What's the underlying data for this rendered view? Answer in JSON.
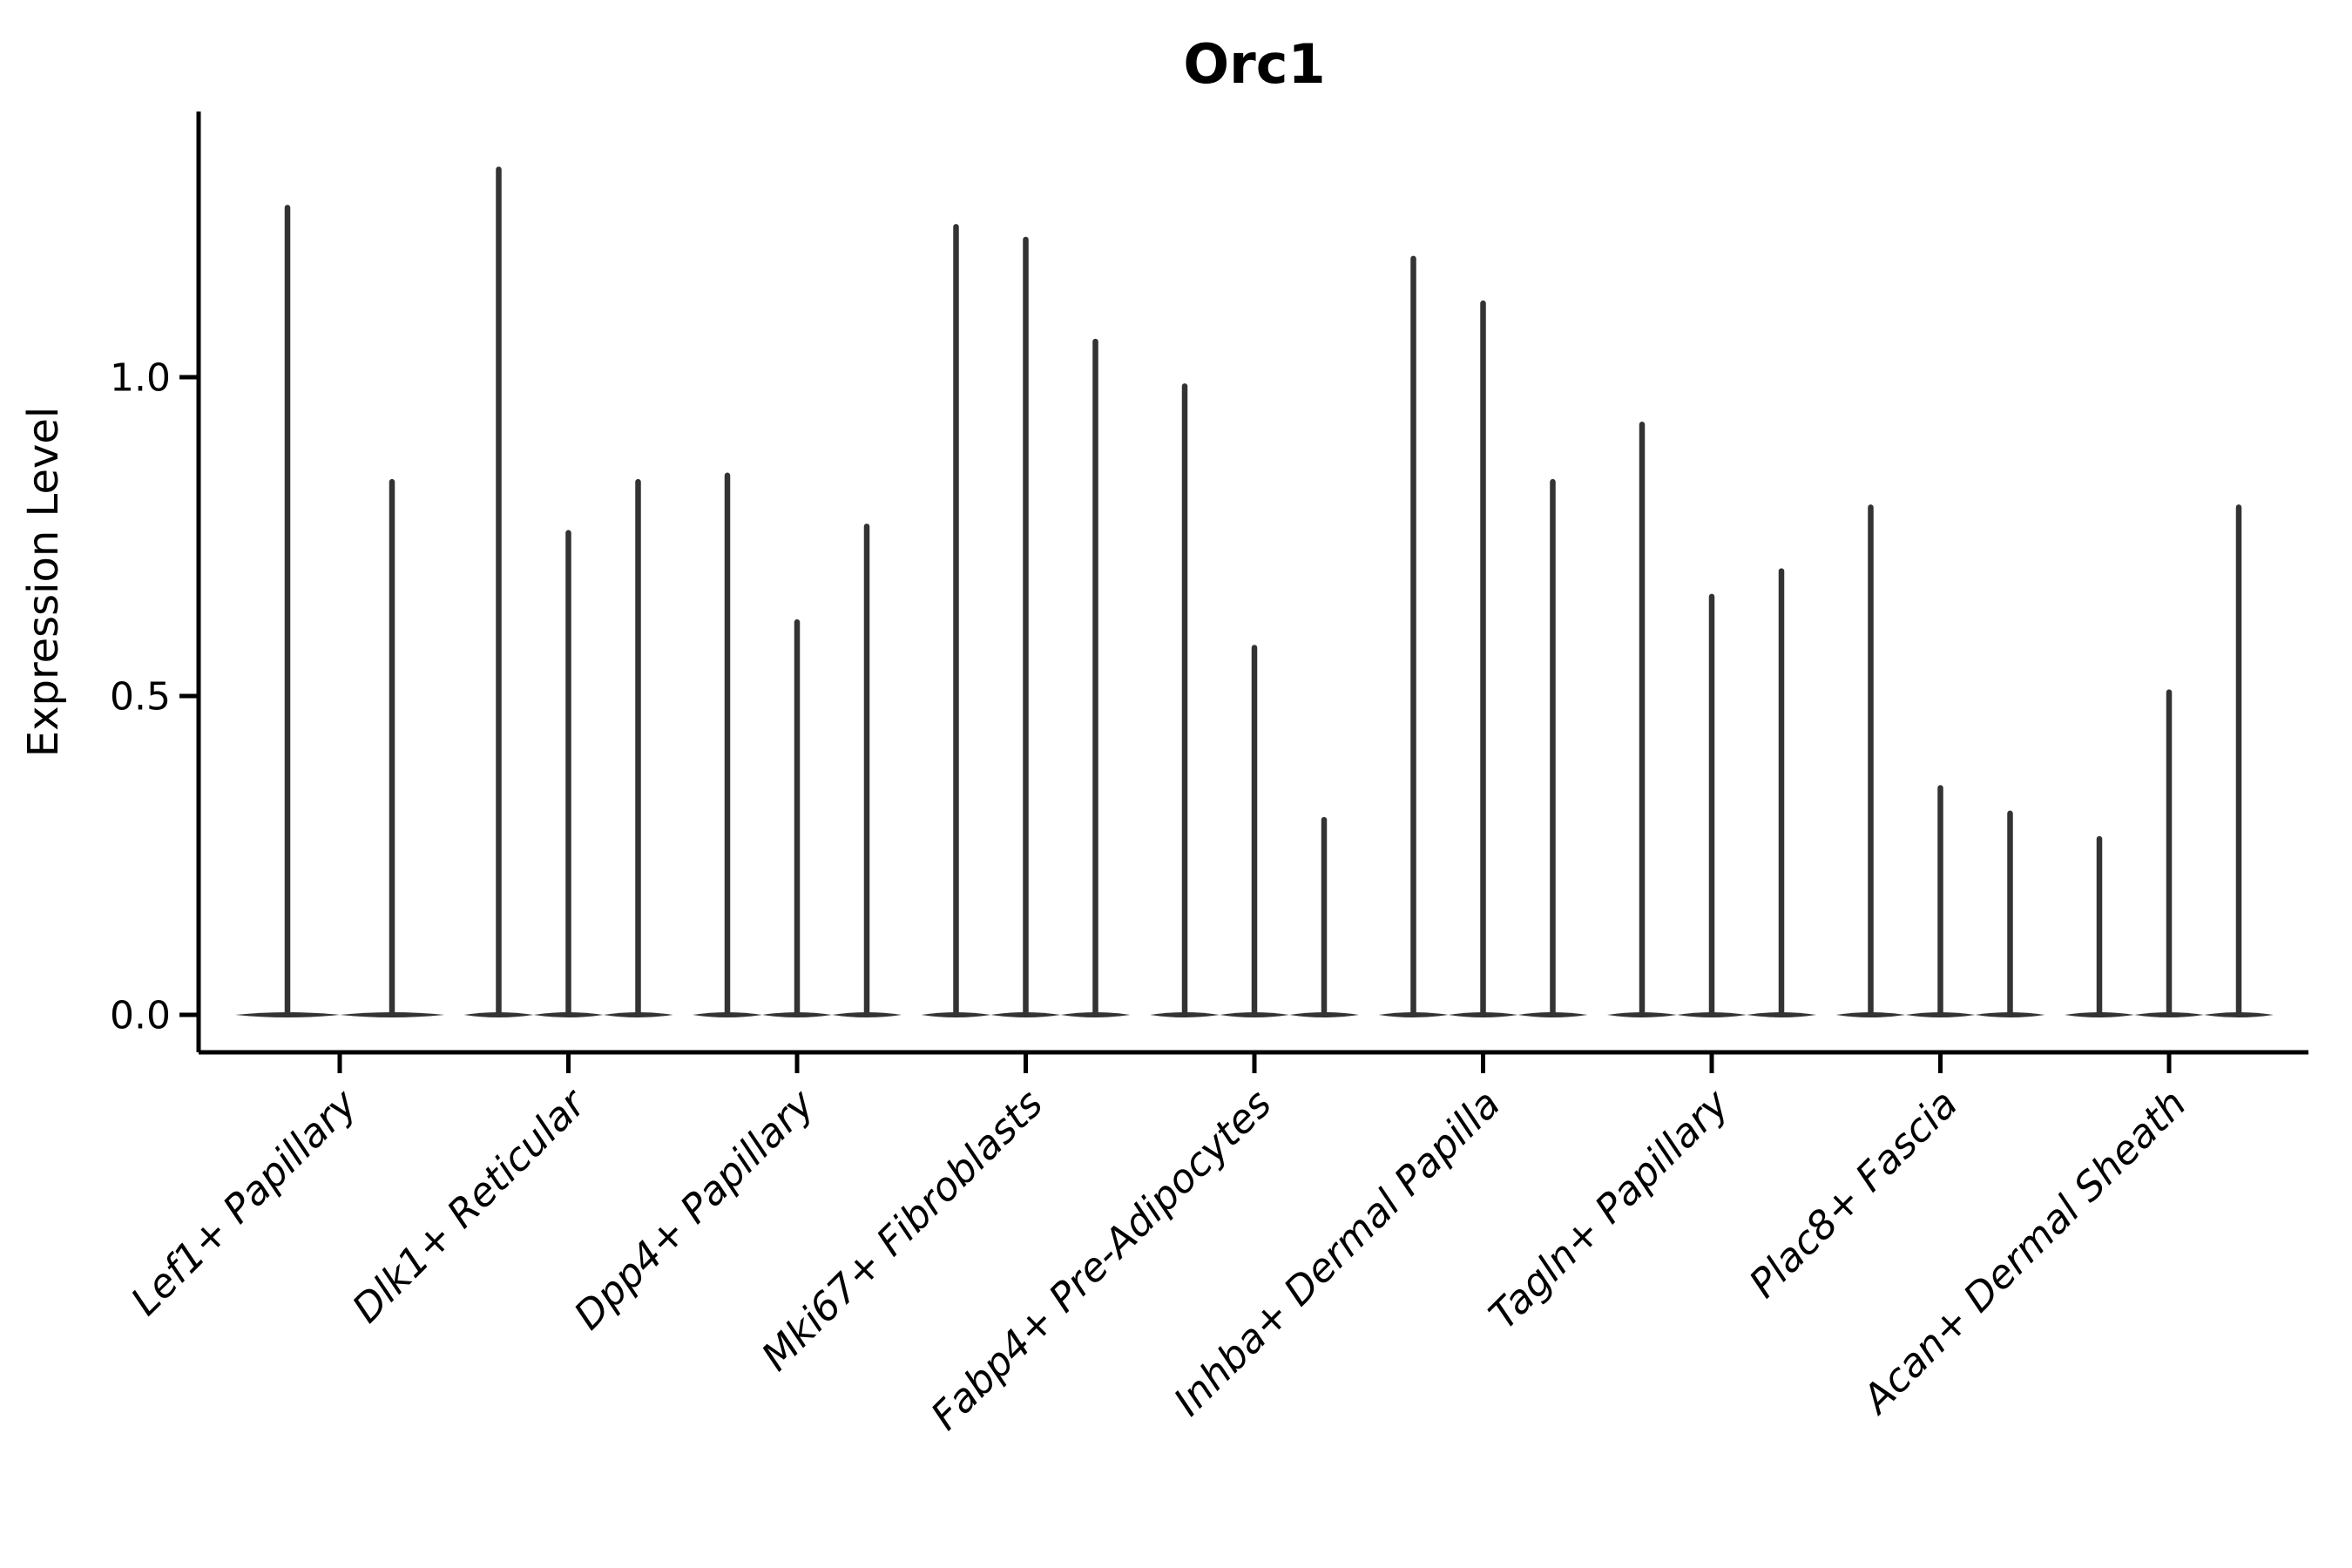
{
  "title": "Orc1",
  "axes": {
    "ylabel": "Expression Level"
  },
  "chart_data": {
    "type": "violin",
    "title": "Orc1",
    "xlabel": "",
    "ylabel": "Expression Level",
    "ylim": [
      0.0,
      1.42
    ],
    "grid": false,
    "legend_position": "none",
    "yticks": [
      {
        "value": 0.0,
        "label": "0.0"
      },
      {
        "value": 0.5,
        "label": "0.5"
      },
      {
        "value": 1.0,
        "label": "1.0"
      }
    ],
    "categories": [
      "Lef1+ Papillary",
      "Dlk1+ Reticular",
      "Dpp4+ Papillary",
      "Mki67+ Fibroblasts",
      "Fabp4+ Pre-Adipocytes",
      "Inhba+ Dermal Papilla",
      "Tagln+ Papillary",
      "Plac8+ Fascia",
      "Acan+ Dermal Sheath"
    ],
    "series": [
      {
        "name": "Lef1+ Papillary",
        "violin_maxima": [
          1.27,
          0.84
        ]
      },
      {
        "name": "Dlk1+ Reticular",
        "violin_maxima": [
          1.33,
          0.76,
          0.84
        ]
      },
      {
        "name": "Dpp4+ Papillary",
        "violin_maxima": [
          0.85,
          0.62,
          0.77
        ]
      },
      {
        "name": "Mki67+ Fibroblasts",
        "violin_maxima": [
          1.24,
          1.22,
          1.06
        ]
      },
      {
        "name": "Fabp4+ Pre-Adipocytes",
        "violin_maxima": [
          0.99,
          0.58,
          0.31
        ]
      },
      {
        "name": "Inhba+ Dermal Papilla",
        "violin_maxima": [
          1.19,
          1.12,
          0.84
        ]
      },
      {
        "name": "Tagln+ Papillary",
        "violin_maxima": [
          0.93,
          0.66,
          0.7
        ]
      },
      {
        "name": "Plac8+ Fascia",
        "violin_maxima": [
          0.8,
          0.36,
          0.32
        ]
      },
      {
        "name": "Acan+ Dermal Sheath",
        "violin_maxima": [
          0.28,
          0.51,
          0.8
        ]
      }
    ],
    "annotations": "violins are needle-shaped: flat lens-shaped body at 0 with a thin vertical tail up to the max expression value",
    "colors": {
      "violin": "#333333",
      "axis": "#000000",
      "text": "#000000",
      "background": "#ffffff"
    }
  }
}
